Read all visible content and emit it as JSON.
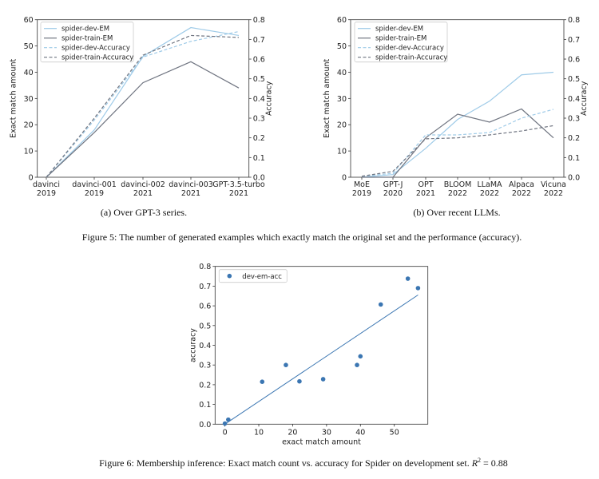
{
  "figure5": {
    "caption": "Figure 5: The number of generated examples which exactly match the original set and the performance (accuracy).",
    "subcaption_a": "(a) Over GPT-3 series.",
    "subcaption_b": "(b) Over recent LLMs."
  },
  "figure6": {
    "caption": "Figure 6: Membership inference: Exact match count vs. accuracy for Spider on development set. R² = 0.88"
  },
  "colors": {
    "dev": "#9fcbe8",
    "train": "#6f7480",
    "scatter": "#3b76b2"
  },
  "chart_data": [
    {
      "type": "line",
      "categories": [
        [
          "davinci",
          "2019"
        ],
        [
          "davinci-001",
          "2019"
        ],
        [
          "davinci-002",
          "2021"
        ],
        [
          "davinci-003",
          "2021"
        ],
        [
          "GPT-3.5-turbo",
          "2021"
        ]
      ],
      "ylabel": "Exact match amount",
      "ylim": [
        0,
        60
      ],
      "yticks": [
        0,
        10,
        20,
        30,
        40,
        50,
        60
      ],
      "y2label": "Accuracy",
      "y2lim": [
        0,
        0.8
      ],
      "y2ticks": [
        "0.0",
        "0.1",
        "0.2",
        "0.3",
        "0.4",
        "0.5",
        "0.6",
        "0.7",
        "0.8"
      ],
      "legend": "top-left",
      "grid": false,
      "series": [
        {
          "name": "spider-dev-EM",
          "axis": "left",
          "style": "solid",
          "color": "dev",
          "values": [
            0,
            18,
            46,
            57,
            54
          ]
        },
        {
          "name": "spider-train-EM",
          "axis": "left",
          "style": "solid",
          "color": "train",
          "values": [
            0,
            17,
            36,
            44,
            34
          ]
        },
        {
          "name": "spider-dev-Accuracy",
          "axis": "right",
          "style": "dashed",
          "color": "dev",
          "values": [
            0,
            0.29,
            0.61,
            0.69,
            0.74
          ]
        },
        {
          "name": "spider-train-Accuracy",
          "axis": "right",
          "style": "dashed",
          "color": "train",
          "values": [
            0,
            0.3,
            0.62,
            0.72,
            0.71
          ]
        }
      ]
    },
    {
      "type": "line",
      "categories": [
        [
          "MoE",
          "2019"
        ],
        [
          "GPT-J",
          "2020"
        ],
        [
          "OPT",
          "2021"
        ],
        [
          "BLOOM",
          "2022"
        ],
        [
          "LLaMA",
          "2022"
        ],
        [
          "Alpaca",
          "2022"
        ],
        [
          "Vicuna",
          "2022"
        ]
      ],
      "ylabel": "Exact match amount",
      "ylim": [
        0,
        60
      ],
      "yticks": [
        0,
        10,
        20,
        30,
        40,
        50,
        60
      ],
      "y2label": "Accuracy",
      "y2lim": [
        0,
        0.8
      ],
      "y2ticks": [
        "0.0",
        "0.1",
        "0.2",
        "0.3",
        "0.4",
        "0.5",
        "0.6",
        "0.7",
        "0.8"
      ],
      "legend": "top-left",
      "grid": false,
      "series": [
        {
          "name": "spider-dev-EM",
          "axis": "left",
          "style": "solid",
          "color": "dev",
          "values": [
            0,
            1,
            11,
            22,
            29,
            39,
            40
          ]
        },
        {
          "name": "spider-train-EM",
          "axis": "left",
          "style": "solid",
          "color": "train",
          "values": [
            0,
            0,
            15,
            24,
            21,
            26,
            15
          ]
        },
        {
          "name": "spider-dev-Accuracy",
          "axis": "right",
          "style": "dashed",
          "color": "dev",
          "values": [
            0.005,
            0.02,
            0.215,
            0.215,
            0.227,
            0.3,
            0.345
          ]
        },
        {
          "name": "spider-train-Accuracy",
          "axis": "right",
          "style": "dashed",
          "color": "train",
          "values": [
            0.005,
            0.03,
            0.195,
            0.2,
            0.215,
            0.235,
            0.262
          ]
        }
      ]
    },
    {
      "type": "scatter",
      "xlabel": "exact match amount",
      "ylabel": "accuracy",
      "xlim": [
        -2.9,
        59.9
      ],
      "ylim": [
        0,
        0.8
      ],
      "xticks": [
        0,
        10,
        20,
        30,
        40,
        50
      ],
      "yticks": [
        "0.0",
        "0.1",
        "0.2",
        "0.3",
        "0.4",
        "0.5",
        "0.6",
        "0.7",
        "0.8"
      ],
      "legend": "top-left",
      "grid": false,
      "series": [
        {
          "name": "dev-em-acc",
          "points": [
            [
              0,
              0.003
            ],
            [
              1,
              0.023
            ],
            [
              11,
              0.215
            ],
            [
              18,
              0.3
            ],
            [
              22,
              0.217
            ],
            [
              29,
              0.228
            ],
            [
              39,
              0.3
            ],
            [
              40,
              0.344
            ],
            [
              46,
              0.607
            ],
            [
              54,
              0.738
            ],
            [
              57,
              0.69
            ]
          ]
        }
      ],
      "fit_line": [
        [
          0,
          0.0
        ],
        [
          57,
          0.655
        ]
      ]
    }
  ]
}
